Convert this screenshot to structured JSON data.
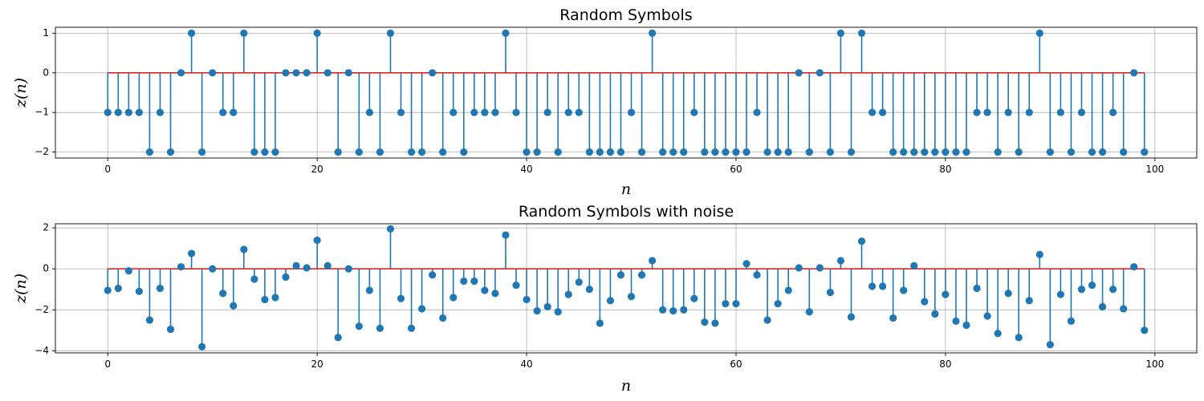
{
  "chart_data": [
    {
      "type": "stem",
      "title": "Random Symbols",
      "xlabel": "n",
      "ylabel": "z(n)",
      "xlim": [
        -5,
        104
      ],
      "ylim": [
        -2.15,
        1.15
      ],
      "xticks": [
        0,
        20,
        40,
        60,
        80,
        100
      ],
      "yticks": [
        -2,
        -1,
        0,
        1
      ],
      "ytick_labels": [
        "−2",
        "−1",
        "0",
        "1"
      ],
      "grid": true,
      "baseline_color": "#d62728",
      "stem_color": "#1f77b4",
      "x": [
        0,
        1,
        2,
        3,
        4,
        5,
        6,
        7,
        8,
        9,
        10,
        11,
        12,
        13,
        14,
        15,
        16,
        17,
        18,
        19,
        20,
        21,
        22,
        23,
        24,
        25,
        26,
        27,
        28,
        29,
        30,
        31,
        32,
        33,
        34,
        35,
        36,
        37,
        38,
        39,
        40,
        41,
        42,
        43,
        44,
        45,
        46,
        47,
        48,
        49,
        50,
        51,
        52,
        53,
        54,
        55,
        56,
        57,
        58,
        59,
        60,
        61,
        62,
        63,
        64,
        65,
        66,
        67,
        68,
        69,
        70,
        71,
        72,
        73,
        74,
        75,
        76,
        77,
        78,
        79,
        80,
        81,
        82,
        83,
        84,
        85,
        86,
        87,
        88,
        89,
        90,
        91,
        92,
        93,
        94,
        95,
        96,
        97,
        98,
        99
      ],
      "values": [
        -1,
        -1,
        -1,
        -1,
        -2,
        -1,
        -2,
        0,
        1,
        -2,
        0,
        -1,
        -1,
        1,
        -2,
        -2,
        -2,
        0,
        0,
        0,
        1,
        0,
        -2,
        0,
        -2,
        -1,
        -2,
        1,
        -1,
        -2,
        -2,
        0,
        -2,
        -1,
        -2,
        -1,
        -1,
        -1,
        1,
        -1,
        -2,
        -2,
        -1,
        -2,
        -1,
        -1,
        -2,
        -2,
        -2,
        -2,
        -1,
        -2,
        1,
        -2,
        -2,
        -2,
        -1,
        -2,
        -2,
        -2,
        -2,
        -2,
        -1,
        -2,
        -2,
        -2,
        0,
        -2,
        0,
        -2,
        1,
        -2,
        1,
        -1,
        -1,
        -2,
        -2,
        -2,
        -2,
        -2,
        -2,
        -2,
        -2,
        -1,
        -1,
        -2,
        -1,
        -2,
        -1,
        1,
        -2,
        -1,
        -2,
        -1,
        -2,
        -2,
        -1,
        -2,
        0,
        -2
      ]
    },
    {
      "type": "stem",
      "title": "Random Symbols with noise",
      "xlabel": "n",
      "ylabel": "z(n)",
      "xlim": [
        -5,
        104
      ],
      "ylim": [
        -4.1,
        2.2
      ],
      "xticks": [
        0,
        20,
        40,
        60,
        80,
        100
      ],
      "yticks": [
        -4,
        -2,
        0,
        2
      ],
      "ytick_labels": [
        "−4",
        "−2",
        "0",
        "2"
      ],
      "grid": true,
      "baseline_color": "#d62728",
      "stem_color": "#1f77b4",
      "x": [
        0,
        1,
        2,
        3,
        4,
        5,
        6,
        7,
        8,
        9,
        10,
        11,
        12,
        13,
        14,
        15,
        16,
        17,
        18,
        19,
        20,
        21,
        22,
        23,
        24,
        25,
        26,
        27,
        28,
        29,
        30,
        31,
        32,
        33,
        34,
        35,
        36,
        37,
        38,
        39,
        40,
        41,
        42,
        43,
        44,
        45,
        46,
        47,
        48,
        49,
        50,
        51,
        52,
        53,
        54,
        55,
        56,
        57,
        58,
        59,
        60,
        61,
        62,
        63,
        64,
        65,
        66,
        67,
        68,
        69,
        70,
        71,
        72,
        73,
        74,
        75,
        76,
        77,
        78,
        79,
        80,
        81,
        82,
        83,
        84,
        85,
        86,
        87,
        88,
        89,
        90,
        91,
        92,
        93,
        94,
        95,
        96,
        97,
        98,
        99
      ],
      "values": [
        -1.05,
        -0.95,
        -0.1,
        -1.1,
        -2.5,
        -0.95,
        -2.95,
        0.1,
        0.75,
        -3.8,
        0,
        -1.2,
        -1.8,
        0.95,
        -0.5,
        -1.5,
        -1.4,
        -0.4,
        0.15,
        0.05,
        1.4,
        0.15,
        -3.35,
        0,
        -2.8,
        -1.05,
        -2.9,
        1.95,
        -1.45,
        -2.9,
        -1.95,
        -0.3,
        -2.4,
        -1.4,
        -0.6,
        -0.6,
        -1.05,
        -1.2,
        1.65,
        -0.8,
        -1.5,
        -2.05,
        -1.85,
        -2.1,
        -1.25,
        -0.65,
        -1.0,
        -2.65,
        -1.55,
        -0.3,
        -1.35,
        -0.3,
        0.4,
        -2.0,
        -2.05,
        -2.0,
        -1.45,
        -2.6,
        -2.65,
        -1.7,
        -1.7,
        0.25,
        -0.3,
        -2.5,
        -1.7,
        -1.05,
        0.05,
        -2.1,
        0.05,
        -1.15,
        0.4,
        -2.35,
        1.35,
        -0.85,
        -0.85,
        -2.4,
        -1.05,
        0.15,
        -1.6,
        -2.2,
        -1.25,
        -2.55,
        -2.75,
        -0.95,
        -2.3,
        -3.15,
        -1.2,
        -3.35,
        -1.55,
        0.7,
        -3.7,
        -1.25,
        -2.55,
        -1.0,
        -0.8,
        -1.85,
        -1.0,
        -1.95,
        0.1,
        -3.0
      ]
    }
  ]
}
